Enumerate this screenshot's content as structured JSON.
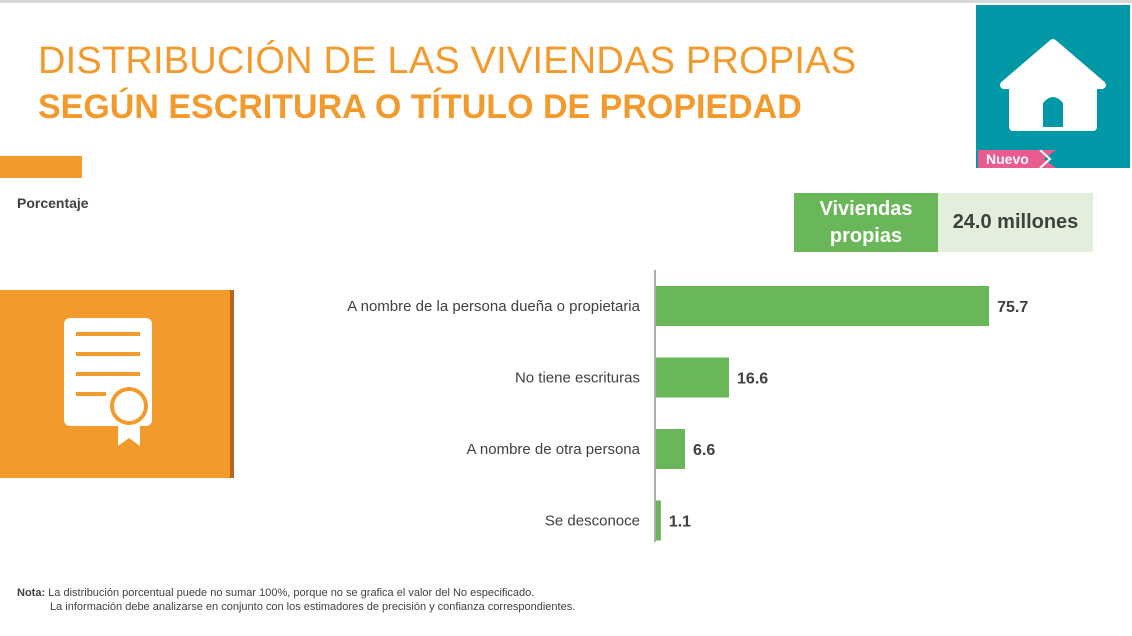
{
  "title": {
    "line1": "DISTRIBUCIÓN DE LAS VIVIENDAS PROPIAS",
    "line2": "SEGÚN ESCRITURA O TÍTULO DE PROPIEDAD"
  },
  "badge": "Nuevo",
  "unit_label": "Porcentaje",
  "summary": {
    "label_line1": "Viviendas",
    "label_line2": "propias",
    "value": "24.0 millones"
  },
  "icons": {
    "header": "house-icon",
    "side": "certificate-icon"
  },
  "colors": {
    "accent": "#f39a2d",
    "bar": "#6ab75a",
    "teal": "#0097a7",
    "badge": "#ea5b8f"
  },
  "chart_data": {
    "type": "bar",
    "orientation": "horizontal",
    "categories": [
      "A nombre de la persona dueña o propietaria",
      "No tiene escrituras",
      "A nombre de otra persona",
      "Se desconoce"
    ],
    "values": [
      75.7,
      16.6,
      6.6,
      1.1
    ],
    "value_labels": [
      "75.7",
      "16.6",
      "6.6",
      "1.1"
    ],
    "title": "",
    "xlabel": "",
    "ylabel": "",
    "xlim": [
      0,
      100
    ],
    "grid": false
  },
  "note": {
    "label": "Nota:",
    "line1": "La distribución porcentual puede no sumar 100%, porque no se grafica el valor del No especificado.",
    "line2": "La información debe analizarse en conjunto con los estimadores de precisión y confianza correspondientes."
  }
}
